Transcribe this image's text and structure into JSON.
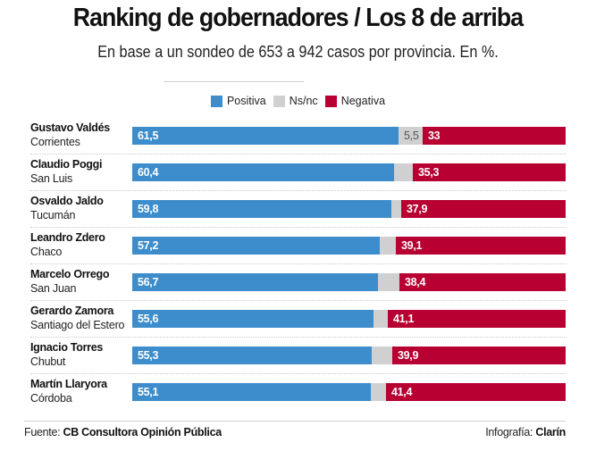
{
  "chart_data": {
    "type": "bar",
    "orientation": "horizontal-stacked-100",
    "title": "Ranking de gobernadores / Los 8 de arriba",
    "subtitle": "En base a un sondeo de 653 a 942 casos por provincia. En %.",
    "legend": [
      {
        "name": "Positiva",
        "color": "#3d8ccb"
      },
      {
        "name": "Ns/nc",
        "color": "#d0d0d0"
      },
      {
        "name": "Negativa",
        "color": "#b70031"
      }
    ],
    "legend_position": "top-center",
    "categories": [
      {
        "name": "Gustavo Valdés",
        "province": "Corrientes"
      },
      {
        "name": "Claudio Poggi",
        "province": "San Luis"
      },
      {
        "name": "Osvaldo Jaldo",
        "province": "Tucumán"
      },
      {
        "name": "Leandro Zdero",
        "province": "Chaco"
      },
      {
        "name": "Marcelo Orrego",
        "province": "San Juan"
      },
      {
        "name": "Gerardo Zamora",
        "province": "Santiago del Estero"
      },
      {
        "name": "Ignacio Torres",
        "province": "Chubut"
      },
      {
        "name": "Martín Llaryora",
        "province": "Córdoba"
      }
    ],
    "series": [
      {
        "name": "Positiva",
        "values": [
          61.5,
          60.4,
          59.8,
          57.2,
          56.7,
          55.6,
          55.3,
          55.1
        ],
        "labels": [
          "61,5",
          "60,4",
          "59,8",
          "57,2",
          "56,7",
          "55,6",
          "55,3",
          "55,1"
        ]
      },
      {
        "name": "Ns/nc",
        "values": [
          5.5,
          4.3,
          2.3,
          3.7,
          4.9,
          3.3,
          4.8,
          3.5
        ],
        "labels": [
          "5,5",
          "",
          "",
          "",
          "",
          "",
          "",
          ""
        ]
      },
      {
        "name": "Negativa",
        "values": [
          33,
          35.3,
          37.9,
          39.1,
          38.4,
          41.1,
          39.9,
          41.4
        ],
        "labels": [
          "33",
          "35,3",
          "37,9",
          "39,1",
          "38,4",
          "41,1",
          "39,9",
          "41,4"
        ]
      }
    ],
    "xlim": [
      0,
      100
    ],
    "grid": false
  },
  "footer": {
    "source_prefix": "Fuente: ",
    "source": "CB Consultora Opinión Pública",
    "credit_prefix": "Infografía: ",
    "credit": "Clarín"
  }
}
